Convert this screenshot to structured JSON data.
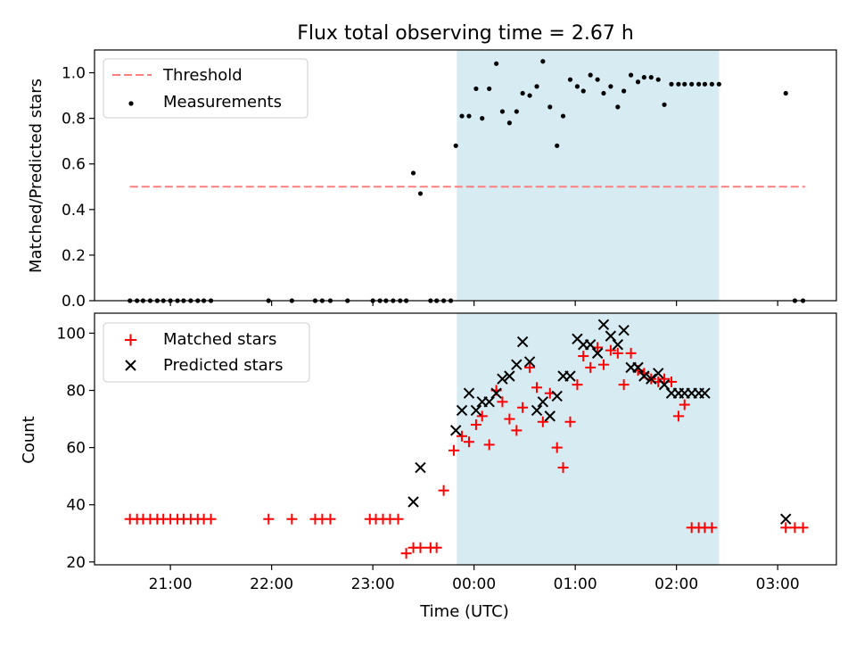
{
  "title": "Flux total observing time = 2.67 h",
  "colors": {
    "threshold": "#ff7f7f",
    "measurement": "#000000",
    "matched": "#ff0000",
    "predicted": "#000000",
    "shade": "#add8e6"
  },
  "chart_data": [
    {
      "type": "scatter",
      "ylabel": "Matched/Predicted stars",
      "ylim": [
        0,
        1.1
      ],
      "yticks": [
        0.0,
        0.2,
        0.4,
        0.6,
        0.8,
        1.0
      ],
      "ytick_labels": [
        "0.0",
        "0.2",
        "0.4",
        "0.6",
        "0.8",
        "1.0"
      ],
      "xlim": [
        20.25,
        27.58
      ],
      "shaded_x": [
        23.83,
        26.42
      ],
      "legend": "top-left",
      "legend_labels": [
        "Threshold",
        "Measurements"
      ],
      "threshold": {
        "name": "Threshold",
        "value": 0.5,
        "x": [
          20.6,
          27.27
        ]
      },
      "series": [
        {
          "name": "Measurements",
          "x": [
            20.6,
            20.67,
            20.73,
            20.8,
            20.87,
            20.93,
            21.0,
            21.07,
            21.13,
            21.2,
            21.27,
            21.33,
            21.4,
            21.97,
            22.2,
            22.43,
            22.5,
            22.58,
            22.75,
            23.0,
            23.07,
            23.13,
            23.2,
            23.27,
            23.33,
            23.4,
            23.47,
            23.57,
            23.63,
            23.7,
            23.77,
            23.82,
            23.88,
            23.95,
            24.02,
            24.08,
            24.15,
            24.22,
            24.28,
            24.35,
            24.42,
            24.48,
            24.55,
            24.62,
            24.68,
            24.75,
            24.82,
            24.88,
            24.95,
            25.02,
            25.08,
            25.15,
            25.22,
            25.28,
            25.35,
            25.42,
            25.48,
            25.55,
            25.62,
            25.68,
            25.75,
            25.82,
            25.88,
            25.95,
            26.02,
            26.08,
            26.15,
            26.22,
            26.28,
            26.35,
            26.42,
            27.08,
            27.17,
            27.25
          ],
          "y": [
            0,
            0,
            0,
            0,
            0,
            0,
            0,
            0,
            0,
            0,
            0,
            0,
            0,
            0,
            0,
            0,
            0,
            0,
            0,
            0,
            0,
            0,
            0,
            0,
            0,
            0.56,
            0.47,
            0,
            0,
            0,
            0,
            0.68,
            0.81,
            0.81,
            0.93,
            0.8,
            0.93,
            1.04,
            0.83,
            0.78,
            0.83,
            0.91,
            0.9,
            0.94,
            1.05,
            0.85,
            0.68,
            0.81,
            0.97,
            0.94,
            0.92,
            0.99,
            0.97,
            0.91,
            0.94,
            0.85,
            0.92,
            0.99,
            0.96,
            0.98,
            0.98,
            0.97,
            0.86,
            0.95,
            0.95,
            0.95,
            0.95,
            0.95,
            0.95,
            0.95,
            0.95,
            0.91,
            0,
            0
          ]
        }
      ],
      "xtick_labels": []
    },
    {
      "type": "scatter",
      "ylabel": "Count",
      "xlabel": "Time (UTC)",
      "ylim": [
        19,
        107
      ],
      "yticks": [
        20,
        40,
        60,
        80,
        100
      ],
      "ytick_labels": [
        "20",
        "40",
        "60",
        "80",
        "100"
      ],
      "xlim": [
        20.25,
        27.58
      ],
      "xticks": [
        21,
        22,
        23,
        24,
        25,
        26,
        27
      ],
      "xtick_labels": [
        "21:00",
        "22:00",
        "23:00",
        "00:00",
        "01:00",
        "02:00",
        "03:00"
      ],
      "shaded_x": [
        23.83,
        26.42
      ],
      "legend": "top-left",
      "legend_labels": [
        "Matched stars",
        "Predicted stars"
      ],
      "series": [
        {
          "name": "Matched stars",
          "marker": "plus",
          "x": [
            20.6,
            20.67,
            20.73,
            20.8,
            20.87,
            20.93,
            21.0,
            21.07,
            21.13,
            21.2,
            21.27,
            21.33,
            21.4,
            21.97,
            22.2,
            22.43,
            22.5,
            22.58,
            22.97,
            23.03,
            23.1,
            23.17,
            23.25,
            23.33,
            23.4,
            23.47,
            23.57,
            23.63,
            23.7,
            23.8,
            23.88,
            23.95,
            24.02,
            24.08,
            24.15,
            24.22,
            24.28,
            24.35,
            24.42,
            24.48,
            24.55,
            24.62,
            24.68,
            24.75,
            24.82,
            24.88,
            24.95,
            25.02,
            25.08,
            25.15,
            25.22,
            25.28,
            25.35,
            25.42,
            25.48,
            25.55,
            25.62,
            25.68,
            25.75,
            25.82,
            25.88,
            25.95,
            26.02,
            26.08,
            26.15,
            26.22,
            26.28,
            26.35,
            27.08,
            27.17,
            27.25
          ],
          "y": [
            35,
            35,
            35,
            35,
            35,
            35,
            35,
            35,
            35,
            35,
            35,
            35,
            35,
            35,
            35,
            35,
            35,
            35,
            35,
            35,
            35,
            35,
            35,
            23,
            25,
            25,
            25,
            25,
            45,
            59,
            64,
            62,
            68,
            71,
            61,
            80,
            76,
            70,
            66,
            74,
            88,
            81,
            69,
            79,
            60,
            53,
            69,
            82,
            92,
            88,
            95,
            89,
            94,
            93,
            82,
            93,
            87,
            86,
            84,
            83,
            84,
            83,
            71,
            75,
            32,
            32,
            32,
            32,
            32,
            32,
            32
          ],
          "note_x_len": 71
        },
        {
          "name": "Predicted stars",
          "marker": "x",
          "x": [
            23.4,
            23.47,
            23.82,
            23.88,
            23.95,
            24.02,
            24.08,
            24.15,
            24.22,
            24.28,
            24.35,
            24.42,
            24.48,
            24.55,
            24.62,
            24.68,
            24.75,
            24.82,
            24.88,
            24.95,
            25.02,
            25.08,
            25.15,
            25.22,
            25.28,
            25.35,
            25.42,
            25.48,
            25.55,
            25.62,
            25.68,
            25.75,
            25.82,
            25.88,
            25.95,
            26.02,
            26.08,
            26.15,
            26.22,
            26.28,
            27.08
          ],
          "y": [
            41,
            53,
            66,
            73,
            79,
            73,
            76,
            76,
            79,
            84,
            85,
            89,
            97,
            90,
            73,
            76,
            71,
            78,
            85,
            85,
            98,
            96,
            96,
            93,
            103,
            99,
            96,
            101,
            88,
            88,
            85,
            84,
            86,
            82,
            79,
            79,
            79,
            79,
            79,
            79,
            35
          ]
        }
      ]
    }
  ]
}
